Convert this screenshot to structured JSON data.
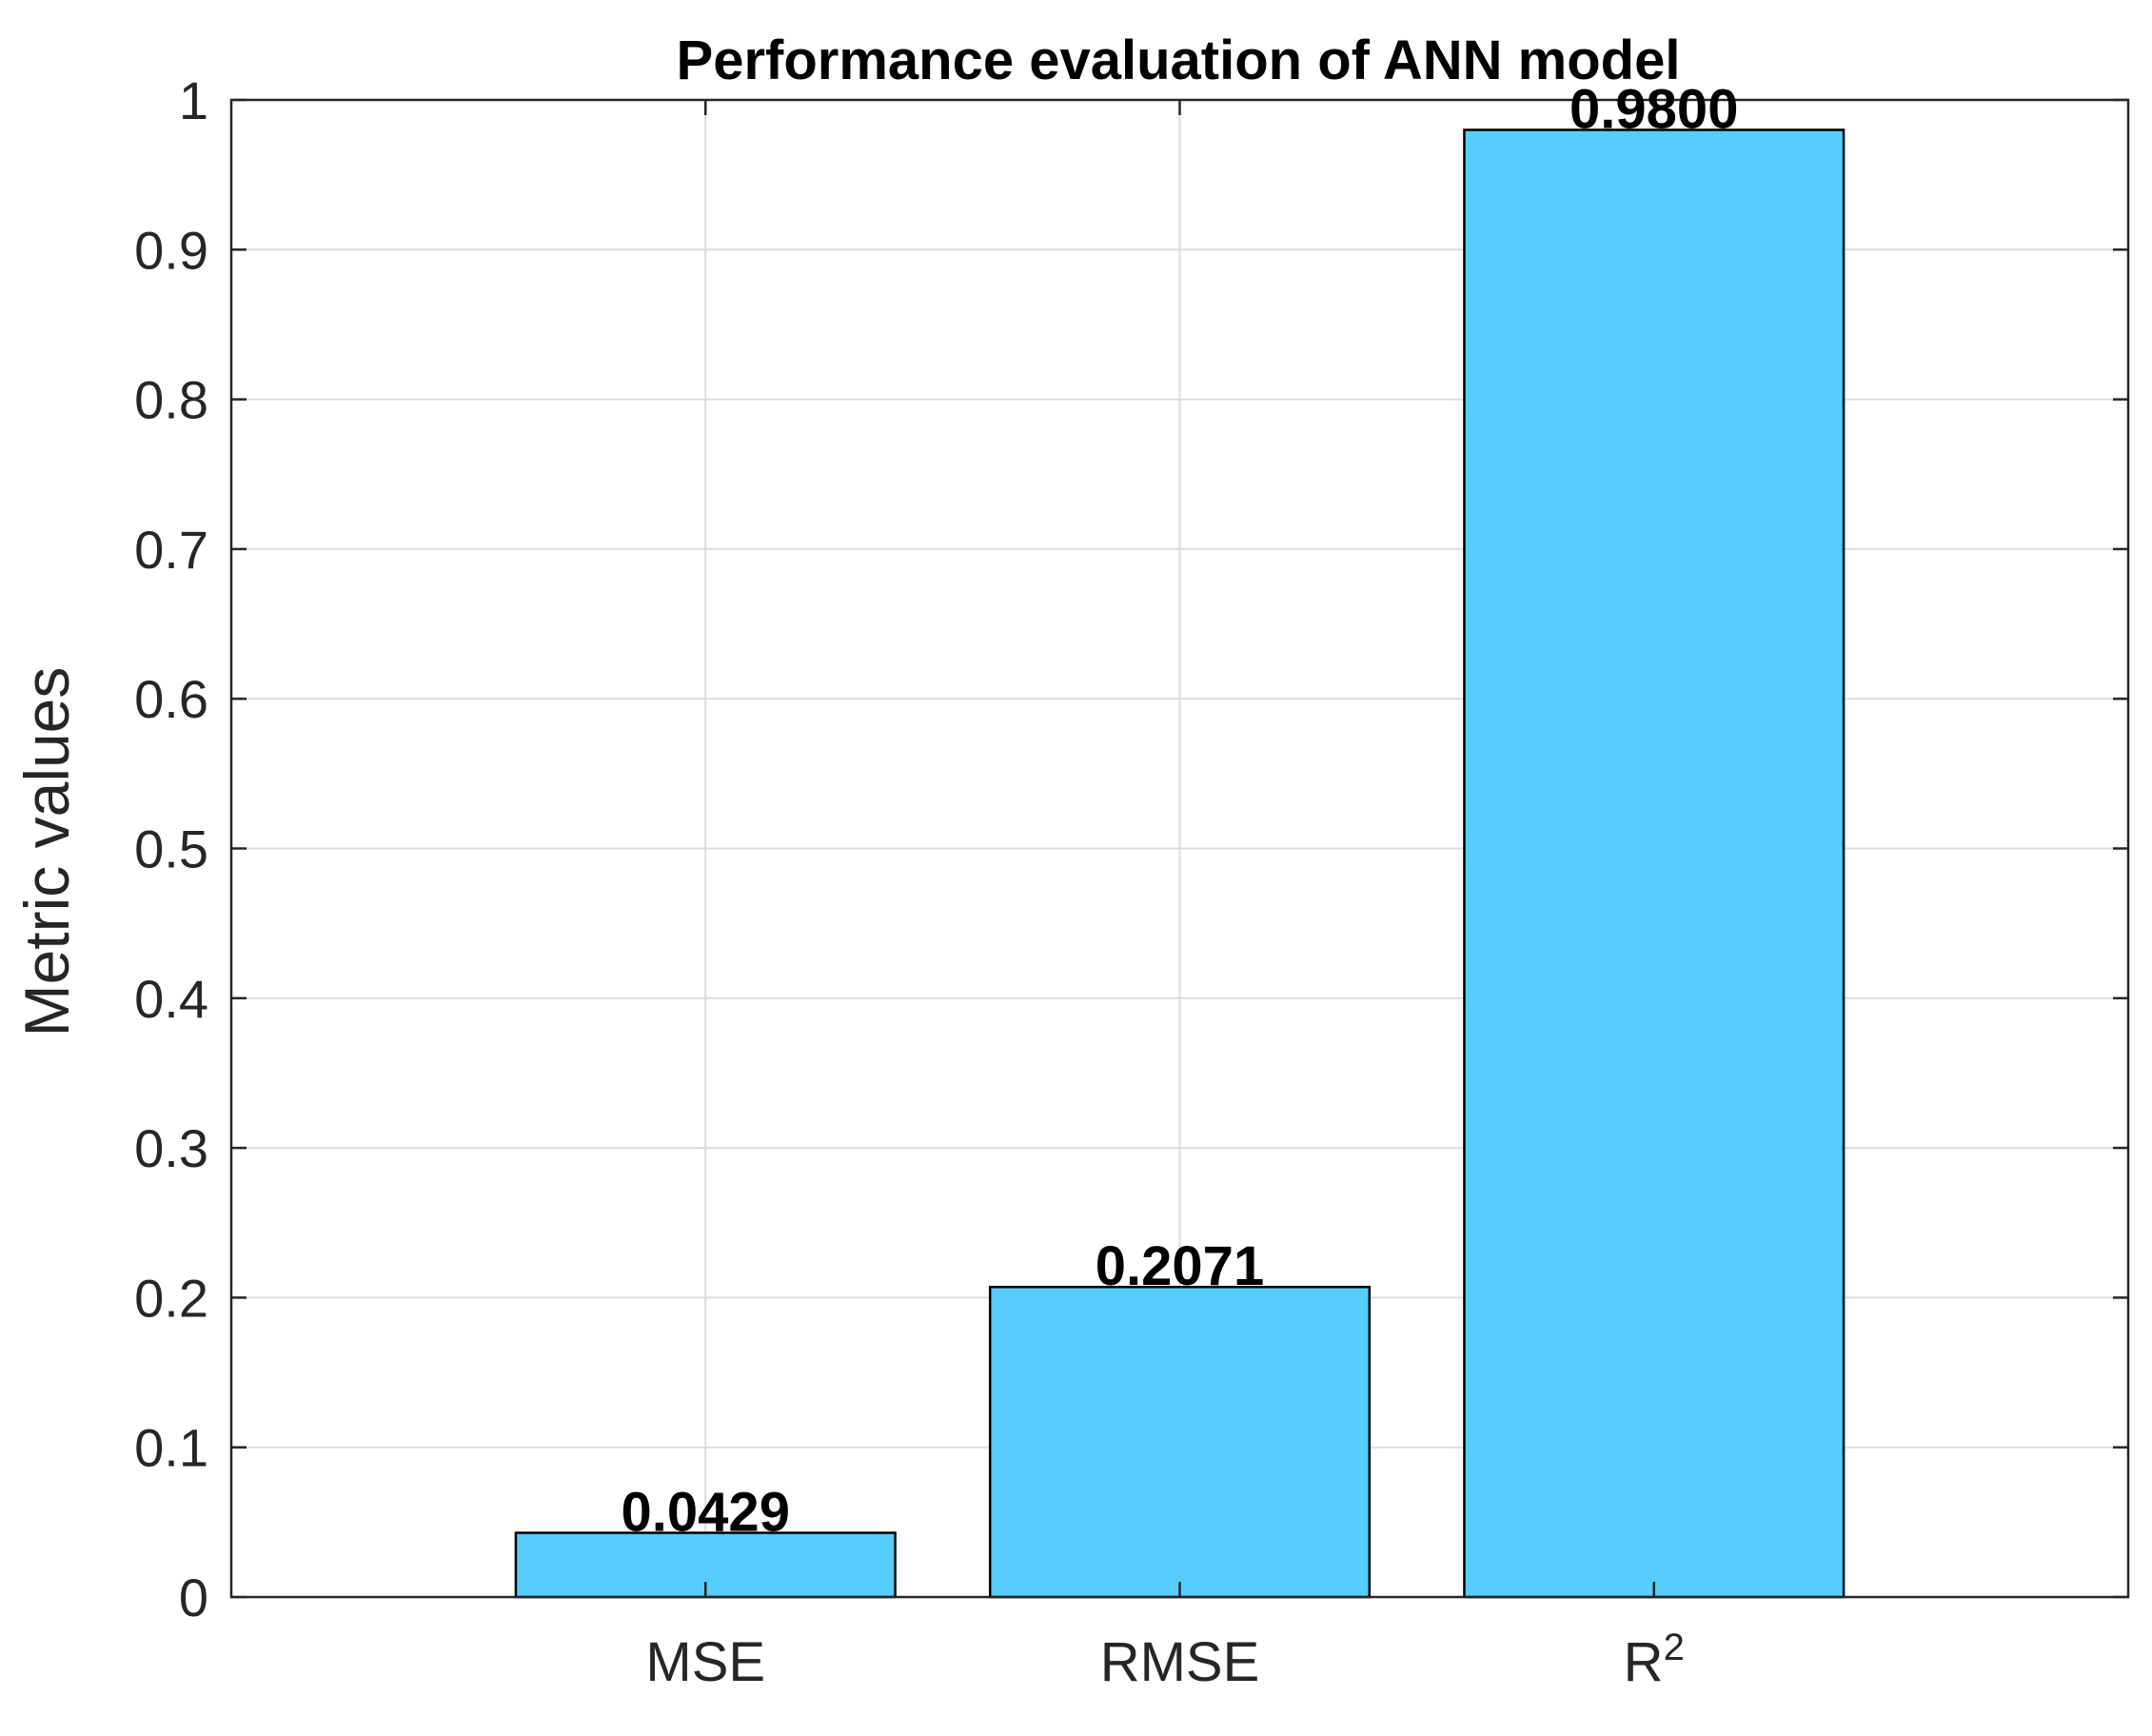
{
  "chart_data": {
    "type": "bar",
    "title": "Performance evaluation of  ANN model",
    "xlabel": "",
    "ylabel": "Metric values",
    "categories": [
      "MSE",
      "RMSE",
      "R2"
    ],
    "category_labels": [
      {
        "base": "MSE",
        "sup": ""
      },
      {
        "base": "RMSE",
        "sup": ""
      },
      {
        "base": "R",
        "sup": "2"
      }
    ],
    "values": [
      0.0429,
      0.2071,
      0.98
    ],
    "value_labels": [
      "0.0429",
      "0.2071",
      "0.9800"
    ],
    "ylim": [
      0,
      1
    ],
    "yticks": [
      0,
      0.1,
      0.2,
      0.3,
      0.4,
      0.5,
      0.6,
      0.7,
      0.8,
      0.9,
      1
    ],
    "ytick_labels": [
      "0",
      "0.1",
      "0.2",
      "0.3",
      "0.4",
      "0.5",
      "0.6",
      "0.7",
      "0.8",
      "0.9",
      "1"
    ],
    "grid": true,
    "bar_color": "#56CDFC",
    "edge_color": "#000000"
  }
}
